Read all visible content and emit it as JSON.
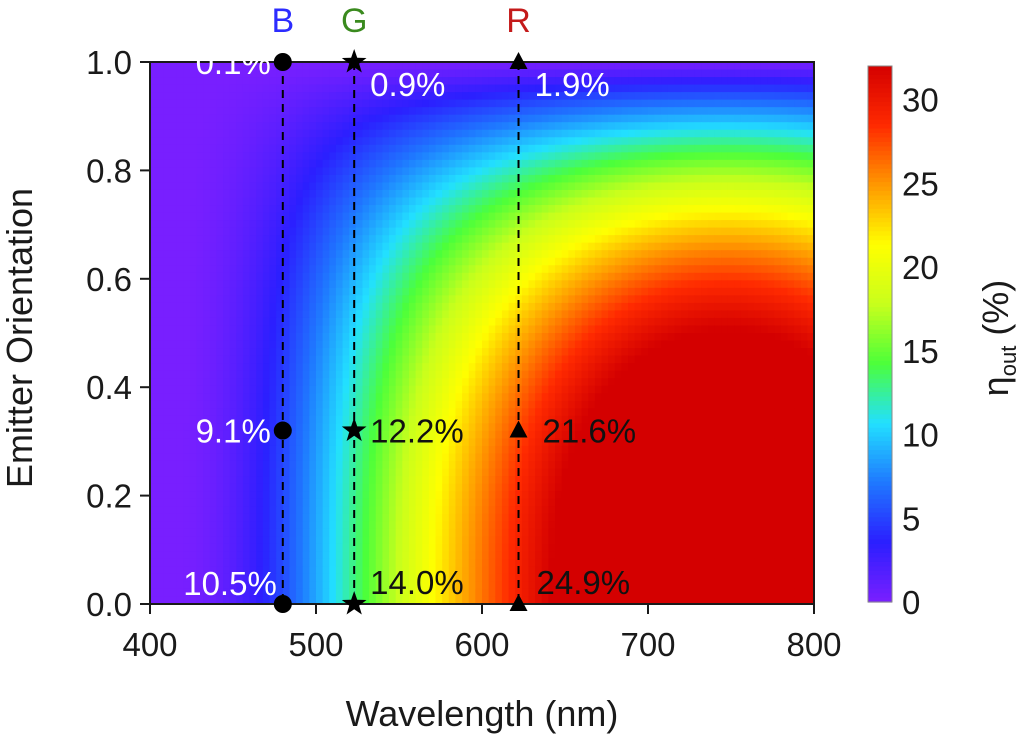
{
  "chart_data": {
    "type": "heatmap",
    "title": "",
    "xlabel": "Wavelength (nm)",
    "ylabel": "Emitter Orientation",
    "xlim": [
      400,
      800
    ],
    "ylim": [
      0.0,
      1.0
    ],
    "x_ticks": [
      "400",
      "500",
      "600",
      "700",
      "800"
    ],
    "y_ticks": [
      "0.0",
      "0.2",
      "0.4",
      "0.6",
      "0.8",
      "1.0"
    ],
    "colorbar": {
      "label_main": "η",
      "label_sub": "out",
      "label_unit": "(%)",
      "range": [
        0,
        32
      ],
      "ticks": [
        "0",
        "5",
        "10",
        "15",
        "20",
        "25",
        "30"
      ],
      "colors": [
        "#7a1fff",
        "#2b1fff",
        "#1f78ff",
        "#22e0ff",
        "#4cff3a",
        "#c8ff1c",
        "#ffff00",
        "#ff9800",
        "#ff2a00",
        "#d40000"
      ]
    },
    "channels": [
      {
        "name": "B",
        "wavelength": 480,
        "color": "#2c2cff",
        "marker": "circle",
        "points": [
          {
            "y": 1.0,
            "value": 0.1,
            "label": "0.1%",
            "label_color": "#ffffff"
          },
          {
            "y": 0.32,
            "value": 9.1,
            "label": "9.1%",
            "label_color": "#ffffff"
          },
          {
            "y": 0.0,
            "value": 10.5,
            "label": "10.5%",
            "label_color": "#ffffff"
          }
        ]
      },
      {
        "name": "G",
        "wavelength": 523,
        "color": "#3a8a1e",
        "marker": "star",
        "points": [
          {
            "y": 1.0,
            "value": 0.9,
            "label": "0.9%",
            "label_color": "#ffffff"
          },
          {
            "y": 0.32,
            "value": 12.2,
            "label": "12.2%",
            "label_color": "#111111"
          },
          {
            "y": 0.0,
            "value": 14.0,
            "label": "14.0%",
            "label_color": "#111111"
          }
        ]
      },
      {
        "name": "R",
        "wavelength": 622,
        "color": "#c41a1a",
        "marker": "triangle",
        "points": [
          {
            "y": 1.0,
            "value": 1.9,
            "label": "1.9%",
            "label_color": "#ffffff"
          },
          {
            "y": 0.32,
            "value": 21.6,
            "label": "21.6%",
            "label_color": "#111111"
          },
          {
            "y": 0.0,
            "value": 24.9,
            "label": "24.9%",
            "label_color": "#111111"
          }
        ]
      }
    ]
  }
}
